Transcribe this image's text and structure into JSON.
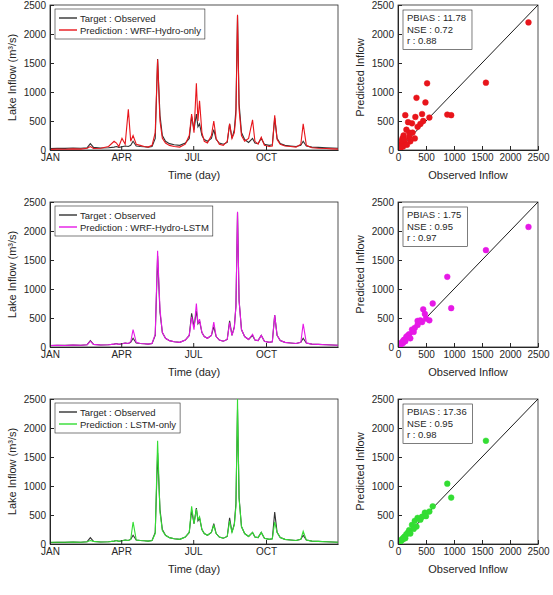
{
  "chart_data": [
    {
      "type": "line",
      "x": [
        1,
        10,
        20,
        30,
        40,
        48,
        52,
        56,
        65,
        75,
        82,
        85,
        88,
        92,
        96,
        100,
        103,
        106,
        110,
        115,
        120,
        125,
        130,
        134,
        137,
        140,
        143,
        147,
        152,
        158,
        165,
        172,
        177,
        180,
        183,
        186,
        188,
        190,
        193,
        196,
        200,
        205,
        208,
        211,
        215,
        220,
        225,
        228,
        231,
        234,
        236,
        238,
        240,
        243,
        247,
        252,
        257,
        260,
        264,
        268,
        272,
        278,
        282,
        285,
        288,
        292,
        298,
        305,
        312,
        318,
        321,
        325,
        332,
        340,
        350,
        358,
        365
      ],
      "xlim": [
        1,
        365
      ],
      "xticks": [
        {
          "value": 1,
          "label": "JAN"
        },
        {
          "value": 91,
          "label": "APR"
        },
        {
          "value": 182,
          "label": "JUL"
        },
        {
          "value": 274,
          "label": "OCT"
        }
      ],
      "ylim": [
        0,
        2500
      ],
      "yticks": [
        0,
        500,
        1000,
        1500,
        2000,
        2500
      ],
      "x_label": "Time (day)",
      "y_label": "Lake Inflow (m³/s)",
      "legend": "upper left",
      "series": [
        {
          "name": "Target : Observed",
          "color": "#333333",
          "values": [
            25,
            30,
            28,
            35,
            30,
            40,
            110,
            45,
            35,
            40,
            50,
            60,
            45,
            55,
            70,
            60,
            80,
            150,
            70,
            60,
            55,
            50,
            60,
            200,
            1570,
            600,
            250,
            150,
            110,
            90,
            80,
            120,
            200,
            580,
            350,
            620,
            400,
            450,
            250,
            180,
            150,
            200,
            350,
            180,
            120,
            100,
            130,
            450,
            200,
            350,
            700,
            2320,
            800,
            300,
            180,
            130,
            200,
            120,
            110,
            200,
            100,
            80,
            90,
            550,
            200,
            110,
            80,
            70,
            60,
            80,
            150,
            70,
            50,
            45,
            40,
            35,
            30
          ]
        },
        {
          "name": "Prediction : WRF-Hydro-only",
          "color": "#e8151b",
          "values": [
            10,
            15,
            12,
            20,
            15,
            30,
            60,
            25,
            30,
            60,
            150,
            120,
            60,
            200,
            100,
            700,
            150,
            250,
            100,
            80,
            60,
            50,
            80,
            300,
            1560,
            500,
            200,
            120,
            80,
            60,
            50,
            100,
            250,
            620,
            300,
            1150,
            500,
            850,
            300,
            150,
            120,
            250,
            500,
            200,
            100,
            80,
            150,
            450,
            200,
            300,
            600,
            2330,
            700,
            250,
            150,
            200,
            520,
            150,
            100,
            220,
            80,
            60,
            70,
            600,
            180,
            100,
            70,
            60,
            50,
            100,
            450,
            80,
            40,
            30,
            25,
            20,
            15
          ]
        }
      ]
    },
    {
      "type": "scatter",
      "x": [
        2330,
        1570,
        950,
        880,
        520,
        490,
        430,
        330,
        310,
        130,
        560,
        250,
        180,
        400,
        350,
        200,
        150,
        100,
        80,
        300,
        220,
        120,
        60,
        50,
        30,
        40,
        90,
        20,
        70,
        160,
        260,
        450,
        200,
        110,
        35
      ],
      "values": [
        2200,
        1160,
        600,
        610,
        1150,
        820,
        620,
        900,
        570,
        600,
        560,
        460,
        480,
        450,
        400,
        300,
        350,
        250,
        200,
        200,
        150,
        120,
        100,
        50,
        20,
        80,
        60,
        10,
        160,
        90,
        300,
        500,
        220,
        180,
        40
      ],
      "color": "#e8151b",
      "marker": "circle",
      "xlim": [
        0,
        2500
      ],
      "xticks": [
        0,
        500,
        1000,
        1500,
        2000,
        2500
      ],
      "ylim": [
        0,
        2500
      ],
      "yticks": [
        0,
        500,
        1000,
        1500,
        2000,
        2500
      ],
      "x_label": "Observed Inflow",
      "y_label": "Predicted Inflow",
      "annotations": [
        "PBIAS : 11.78",
        "NSE : 0.72",
        "r : 0.88"
      ]
    },
    {
      "type": "line",
      "x": [
        1,
        10,
        20,
        30,
        40,
        48,
        52,
        56,
        65,
        75,
        82,
        85,
        88,
        92,
        96,
        100,
        103,
        106,
        110,
        115,
        120,
        125,
        130,
        134,
        137,
        140,
        143,
        147,
        152,
        158,
        165,
        172,
        177,
        180,
        183,
        186,
        188,
        190,
        193,
        196,
        200,
        205,
        208,
        211,
        215,
        220,
        225,
        228,
        231,
        234,
        236,
        238,
        240,
        243,
        247,
        252,
        257,
        260,
        264,
        268,
        272,
        278,
        282,
        285,
        288,
        292,
        298,
        305,
        312,
        318,
        321,
        325,
        332,
        340,
        350,
        358,
        365
      ],
      "xlim": [
        1,
        365
      ],
      "xticks": [
        {
          "value": 1,
          "label": "JAN"
        },
        {
          "value": 91,
          "label": "APR"
        },
        {
          "value": 182,
          "label": "JUL"
        },
        {
          "value": 274,
          "label": "OCT"
        }
      ],
      "ylim": [
        0,
        2500
      ],
      "yticks": [
        0,
        500,
        1000,
        1500,
        2000,
        2500
      ],
      "x_label": "Time (day)",
      "y_label": "Lake Inflow (m³/s)",
      "legend": "upper left",
      "series": [
        {
          "name": "Target : Observed",
          "color": "#333333",
          "values": [
            25,
            30,
            28,
            35,
            30,
            40,
            110,
            45,
            35,
            40,
            50,
            60,
            45,
            55,
            70,
            60,
            80,
            150,
            70,
            60,
            55,
            50,
            60,
            200,
            1570,
            600,
            250,
            150,
            110,
            90,
            80,
            120,
            200,
            580,
            350,
            620,
            400,
            450,
            250,
            180,
            150,
            200,
            350,
            180,
            120,
            100,
            130,
            450,
            200,
            350,
            700,
            2320,
            800,
            300,
            180,
            130,
            200,
            120,
            110,
            200,
            100,
            80,
            90,
            550,
            200,
            110,
            80,
            70,
            60,
            80,
            150,
            70,
            50,
            45,
            40,
            35,
            30
          ]
        },
        {
          "name": "Prediction : WRF-Hydro-LSTM",
          "color": "#e619e6",
          "values": [
            25,
            28,
            27,
            33,
            30,
            40,
            100,
            45,
            35,
            40,
            50,
            55,
            45,
            55,
            70,
            60,
            90,
            300,
            80,
            60,
            55,
            50,
            60,
            220,
            1660,
            650,
            250,
            150,
            110,
            90,
            80,
            120,
            200,
            520,
            300,
            750,
            400,
            480,
            250,
            180,
            150,
            200,
            430,
            180,
            120,
            100,
            130,
            420,
            200,
            330,
            720,
            2330,
            800,
            300,
            180,
            130,
            220,
            120,
            110,
            200,
            100,
            80,
            90,
            550,
            200,
            110,
            80,
            70,
            60,
            80,
            400,
            70,
            50,
            45,
            40,
            35,
            30
          ]
        }
      ]
    },
    {
      "type": "scatter",
      "x": [
        2330,
        1570,
        950,
        880,
        620,
        560,
        480,
        430,
        350,
        300,
        250,
        200,
        450,
        180,
        150,
        120,
        100,
        80,
        60,
        40,
        30,
        20,
        350,
        280,
        220,
        400,
        500,
        130,
        90,
        50
      ],
      "values": [
        2070,
        1670,
        670,
        1210,
        750,
        460,
        570,
        430,
        450,
        330,
        300,
        220,
        650,
        200,
        180,
        130,
        120,
        90,
        70,
        50,
        30,
        25,
        380,
        260,
        150,
        460,
        490,
        100,
        70,
        40
      ],
      "color": "#e619e6",
      "marker": "circle",
      "xlim": [
        0,
        2500
      ],
      "xticks": [
        0,
        500,
        1000,
        1500,
        2000,
        2500
      ],
      "ylim": [
        0,
        2500
      ],
      "yticks": [
        0,
        500,
        1000,
        1500,
        2000,
        2500
      ],
      "x_label": "Observed Inflow",
      "y_label": "Predicted Inflow",
      "annotations": [
        "PBIAS : 1.75",
        "NSE : 0.95",
        "r : 0.97"
      ]
    },
    {
      "type": "line",
      "x": [
        1,
        10,
        20,
        30,
        40,
        48,
        52,
        56,
        65,
        75,
        82,
        85,
        88,
        92,
        96,
        100,
        103,
        106,
        110,
        115,
        120,
        125,
        130,
        134,
        137,
        140,
        143,
        147,
        152,
        158,
        165,
        172,
        177,
        180,
        183,
        186,
        188,
        190,
        193,
        196,
        200,
        205,
        208,
        211,
        215,
        220,
        225,
        228,
        231,
        234,
        236,
        238,
        240,
        243,
        247,
        252,
        257,
        260,
        264,
        268,
        272,
        278,
        282,
        285,
        288,
        292,
        298,
        305,
        312,
        318,
        321,
        325,
        332,
        340,
        350,
        358,
        365
      ],
      "xlim": [
        1,
        365
      ],
      "xticks": [
        {
          "value": 1,
          "label": "JAN"
        },
        {
          "value": 91,
          "label": "APR"
        },
        {
          "value": 182,
          "label": "JUL"
        },
        {
          "value": 274,
          "label": "OCT"
        }
      ],
      "ylim": [
        0,
        2500
      ],
      "yticks": [
        0,
        500,
        1000,
        1500,
        2000,
        2500
      ],
      "x_label": "Time (day)",
      "y_label": "Lake Inflow (m³/s)",
      "legend": "upper left",
      "series": [
        {
          "name": "Target : Observed",
          "color": "#333333",
          "values": [
            25,
            30,
            28,
            35,
            30,
            40,
            110,
            45,
            35,
            40,
            50,
            60,
            45,
            55,
            70,
            60,
            80,
            150,
            70,
            60,
            55,
            50,
            60,
            200,
            1570,
            600,
            250,
            150,
            110,
            90,
            80,
            120,
            200,
            580,
            350,
            620,
            400,
            450,
            250,
            180,
            150,
            200,
            350,
            180,
            120,
            100,
            130,
            450,
            200,
            350,
            700,
            2320,
            800,
            300,
            180,
            130,
            200,
            120,
            110,
            200,
            100,
            80,
            90,
            550,
            200,
            110,
            80,
            70,
            60,
            80,
            150,
            70,
            50,
            45,
            40,
            35,
            30
          ]
        },
        {
          "name": "Prediction : LSTM-only",
          "color": "#33dd33",
          "values": [
            30,
            30,
            30,
            35,
            30,
            40,
            60,
            45,
            35,
            40,
            50,
            60,
            45,
            55,
            70,
            60,
            80,
            380,
            70,
            60,
            55,
            50,
            60,
            180,
            1780,
            550,
            230,
            150,
            110,
            90,
            80,
            120,
            200,
            650,
            350,
            600,
            420,
            470,
            250,
            180,
            150,
            200,
            320,
            180,
            120,
            100,
            130,
            400,
            200,
            330,
            650,
            2500,
            780,
            300,
            180,
            130,
            200,
            120,
            110,
            200,
            100,
            80,
            90,
            380,
            200,
            110,
            80,
            70,
            60,
            80,
            220,
            70,
            50,
            45,
            40,
            35,
            30
          ]
        }
      ]
    },
    {
      "type": "scatter",
      "x": [
        1570,
        950,
        880,
        620,
        560,
        480,
        430,
        350,
        300,
        250,
        200,
        500,
        180,
        150,
        120,
        100,
        80,
        60,
        40,
        30,
        20,
        400,
        330,
        280,
        220,
        130,
        90,
        50
      ],
      "values": [
        1780,
        800,
        1040,
        650,
        560,
        540,
        470,
        450,
        400,
        330,
        240,
        480,
        200,
        170,
        130,
        110,
        90,
        70,
        50,
        40,
        30,
        420,
        300,
        260,
        180,
        100,
        80,
        50
      ],
      "color": "#33dd33",
      "marker": "circle",
      "xlim": [
        0,
        2500
      ],
      "xticks": [
        0,
        500,
        1000,
        1500,
        2000,
        2500
      ],
      "ylim": [
        0,
        2500
      ],
      "yticks": [
        0,
        500,
        1000,
        1500,
        2000,
        2500
      ],
      "x_label": "Observed Inflow",
      "y_label": "Predicted Inflow",
      "annotations": [
        "PBIAS : 17.36",
        "NSE : 0.95",
        "r : 0.98"
      ]
    }
  ]
}
